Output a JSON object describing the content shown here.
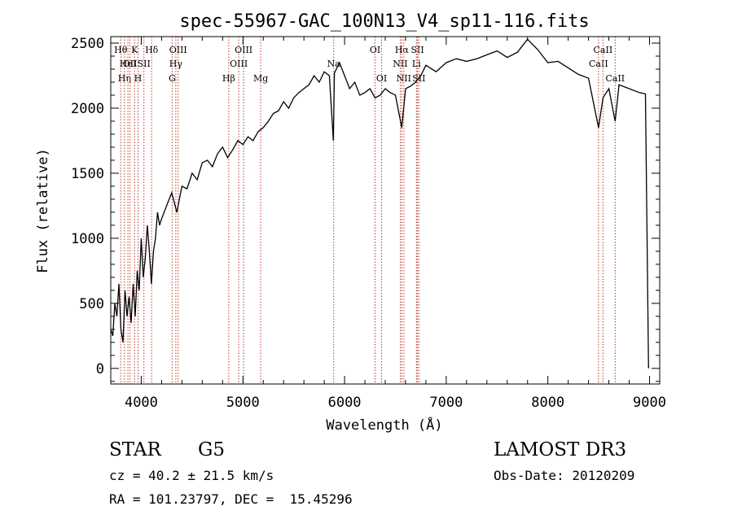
{
  "chart_data": {
    "type": "line",
    "title": "spec-55967-GAC_100N13_V4_sp11-116.fits",
    "xlabel": "Wavelength (Å)",
    "ylabel": "Flux (relative)",
    "xlim": [
      3700,
      9100
    ],
    "ylim": [
      -120,
      2550
    ],
    "xticks": [
      4000,
      5000,
      6000,
      7000,
      8000,
      9000
    ],
    "yticks": [
      0,
      500,
      1000,
      1500,
      2000,
      2500
    ],
    "series": [
      {
        "name": "flux",
        "x": [
          3700,
          3720,
          3740,
          3760,
          3780,
          3800,
          3820,
          3840,
          3860,
          3880,
          3900,
          3920,
          3940,
          3960,
          3980,
          4000,
          4020,
          4040,
          4060,
          4080,
          4100,
          4120,
          4140,
          4160,
          4180,
          4200,
          4250,
          4300,
          4350,
          4400,
          4450,
          4500,
          4550,
          4600,
          4650,
          4700,
          4750,
          4800,
          4850,
          4900,
          4950,
          5000,
          5050,
          5100,
          5150,
          5200,
          5250,
          5300,
          5350,
          5400,
          5450,
          5500,
          5550,
          5600,
          5650,
          5700,
          5750,
          5800,
          5850,
          5890,
          5900,
          5950,
          6000,
          6050,
          6100,
          6150,
          6200,
          6250,
          6300,
          6350,
          6400,
          6450,
          6500,
          6563,
          6600,
          6650,
          6700,
          6750,
          6800,
          6900,
          7000,
          7100,
          7200,
          7300,
          7400,
          7500,
          7600,
          7700,
          7800,
          7900,
          8000,
          8100,
          8200,
          8300,
          8400,
          8498,
          8542,
          8600,
          8662,
          8700,
          8800,
          8900,
          8960,
          8990
        ],
        "y": [
          300,
          250,
          500,
          400,
          650,
          300,
          200,
          600,
          400,
          550,
          350,
          650,
          400,
          750,
          600,
          1000,
          700,
          850,
          1100,
          900,
          650,
          900,
          1000,
          1200,
          1100,
          1150,
          1250,
          1350,
          1200,
          1400,
          1380,
          1500,
          1450,
          1580,
          1600,
          1550,
          1650,
          1700,
          1620,
          1680,
          1750,
          1720,
          1780,
          1750,
          1820,
          1850,
          1900,
          1960,
          1980,
          2050,
          2000,
          2080,
          2120,
          2150,
          2180,
          2250,
          2200,
          2280,
          2250,
          1750,
          2270,
          2350,
          2250,
          2150,
          2200,
          2100,
          2120,
          2150,
          2080,
          2100,
          2150,
          2120,
          2100,
          1850,
          2150,
          2170,
          2200,
          2250,
          2330,
          2280,
          2350,
          2380,
          2360,
          2380,
          2410,
          2440,
          2390,
          2430,
          2530,
          2450,
          2350,
          2360,
          2310,
          2260,
          2230,
          1850,
          2080,
          2150,
          1900,
          2180,
          2150,
          2120,
          2110,
          0
        ]
      }
    ],
    "line_markers": [
      {
        "wavelength": 3798,
        "label": "Hθ",
        "row": 0
      },
      {
        "wavelength": 3835,
        "label": "Hη",
        "row": 2
      },
      {
        "wavelength": 3869,
        "label": "HeI",
        "row": 1
      },
      {
        "wavelength": 3889,
        "label": "OII",
        "row": 1
      },
      {
        "wavelength": 3934,
        "label": "K",
        "row": 0
      },
      {
        "wavelength": 3968,
        "label": "H",
        "row": 2
      },
      {
        "wavelength": 4026,
        "label": "SII",
        "row": 1
      },
      {
        "wavelength": 4102,
        "label": "Hδ",
        "row": 0
      },
      {
        "wavelength": 4304,
        "label": "G",
        "row": 2
      },
      {
        "wavelength": 4340,
        "label": "Hγ",
        "row": 1
      },
      {
        "wavelength": 4363,
        "label": "OIII",
        "row": 0
      },
      {
        "wavelength": 4861,
        "label": "Hβ",
        "row": 2
      },
      {
        "wavelength": 4959,
        "label": "OIII",
        "row": 1
      },
      {
        "wavelength": 5007,
        "label": "OIII",
        "row": 0
      },
      {
        "wavelength": 5175,
        "label": "Mg",
        "row": 2
      },
      {
        "wavelength": 5893,
        "label": "Na",
        "row": 1
      },
      {
        "wavelength": 6300,
        "label": "OI",
        "row": 0
      },
      {
        "wavelength": 6364,
        "label": "OI",
        "row": 2
      },
      {
        "wavelength": 6548,
        "label": "NII",
        "row": 1
      },
      {
        "wavelength": 6563,
        "label": "Hα",
        "row": 0
      },
      {
        "wavelength": 6583,
        "label": "NII",
        "row": 2
      },
      {
        "wavelength": 6707,
        "label": "Li",
        "row": 1
      },
      {
        "wavelength": 6717,
        "label": "SII",
        "row": 0
      },
      {
        "wavelength": 6731,
        "label": "SII",
        "row": 2
      },
      {
        "wavelength": 8498,
        "label": "CaII",
        "row": 1
      },
      {
        "wavelength": 8542,
        "label": "CaII",
        "row": 0
      },
      {
        "wavelength": 8662,
        "label": "CaII",
        "row": 2
      }
    ]
  },
  "info": {
    "class": "STAR",
    "subclass": "G5",
    "survey": "LAMOST DR3",
    "redshift": "cz = 40.2 ± 21.5 km/s",
    "obs_date": "Obs-Date: 20120209",
    "coords": "RA = 101.23797, DEC =  15.45296"
  }
}
